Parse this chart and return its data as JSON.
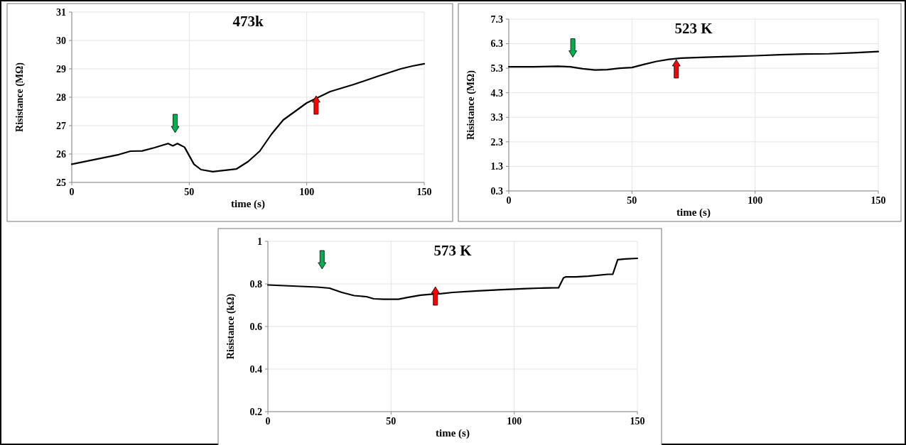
{
  "chart_data": [
    {
      "type": "line",
      "title": "473k",
      "xlabel": "time (s)",
      "ylabel": "Risistance (MΩ)",
      "xlim": [
        0,
        150
      ],
      "xticks": [
        0,
        50,
        100,
        150
      ],
      "ylim": [
        25,
        31
      ],
      "yticks": [
        25,
        26,
        27,
        28,
        29,
        30,
        31
      ],
      "grid": true,
      "marker": "none",
      "line_style": "solid",
      "series": [
        {
          "color": "#000000",
          "x": [
            0,
            10,
            20,
            25,
            30,
            35,
            41,
            43,
            45,
            48,
            52,
            55,
            60,
            70,
            75,
            80,
            85,
            90,
            100,
            105,
            110,
            120,
            130,
            140,
            145,
            150
          ],
          "values": [
            25.64,
            25.81,
            25.98,
            26.1,
            26.11,
            26.22,
            26.37,
            26.29,
            26.37,
            26.24,
            25.64,
            25.45,
            25.38,
            25.47,
            25.73,
            26.1,
            26.7,
            27.2,
            27.8,
            28.0,
            28.2,
            28.45,
            28.73,
            29.0,
            29.1,
            29.18
          ]
        }
      ]
    },
    {
      "type": "line",
      "title": "523 K",
      "xlabel": "time (s)",
      "ylabel": "Risistance (MΩ)",
      "xlim": [
        0,
        150
      ],
      "xticks": [
        0,
        50,
        100,
        150
      ],
      "ylim": [
        0.3,
        7.3
      ],
      "yticks": [
        0.3,
        1.3,
        2.3,
        3.3,
        4.3,
        5.3,
        6.3,
        7.3
      ],
      "grid": true,
      "marker": "none",
      "line_style": "solid",
      "series": [
        {
          "color": "#000000",
          "x": [
            0,
            10,
            20,
            25,
            30,
            35,
            40,
            45,
            50,
            55,
            60,
            65,
            70,
            80,
            90,
            100,
            110,
            120,
            130,
            140,
            150
          ],
          "values": [
            5.36,
            5.36,
            5.38,
            5.36,
            5.28,
            5.23,
            5.24,
            5.3,
            5.33,
            5.46,
            5.58,
            5.66,
            5.71,
            5.75,
            5.78,
            5.81,
            5.85,
            5.88,
            5.89,
            5.93,
            5.98
          ]
        }
      ]
    },
    {
      "type": "line",
      "title": "573 K",
      "xlabel": "time (s)",
      "ylabel": "Risistance (kΩ)",
      "xlim": [
        0,
        150
      ],
      "xticks": [
        0,
        50,
        100,
        150
      ],
      "ylim": [
        0.2,
        1
      ],
      "yticks": [
        0.2,
        0.4,
        0.6,
        0.8,
        1
      ],
      "grid": true,
      "marker": "none",
      "line_style": "solid",
      "series": [
        {
          "color": "#000000",
          "x": [
            0,
            10,
            20,
            25,
            30,
            35,
            40,
            43,
            47,
            53,
            57,
            62,
            67,
            70,
            75,
            85,
            95,
            105,
            110,
            118,
            120,
            121,
            125,
            130,
            138,
            140,
            142,
            145,
            150
          ],
          "values": [
            0.795,
            0.79,
            0.785,
            0.78,
            0.76,
            0.745,
            0.74,
            0.73,
            0.728,
            0.728,
            0.737,
            0.747,
            0.752,
            0.754,
            0.76,
            0.767,
            0.773,
            0.778,
            0.78,
            0.782,
            0.828,
            0.833,
            0.833,
            0.836,
            0.845,
            0.845,
            0.914,
            0.917,
            0.92
          ]
        }
      ]
    }
  ]
}
